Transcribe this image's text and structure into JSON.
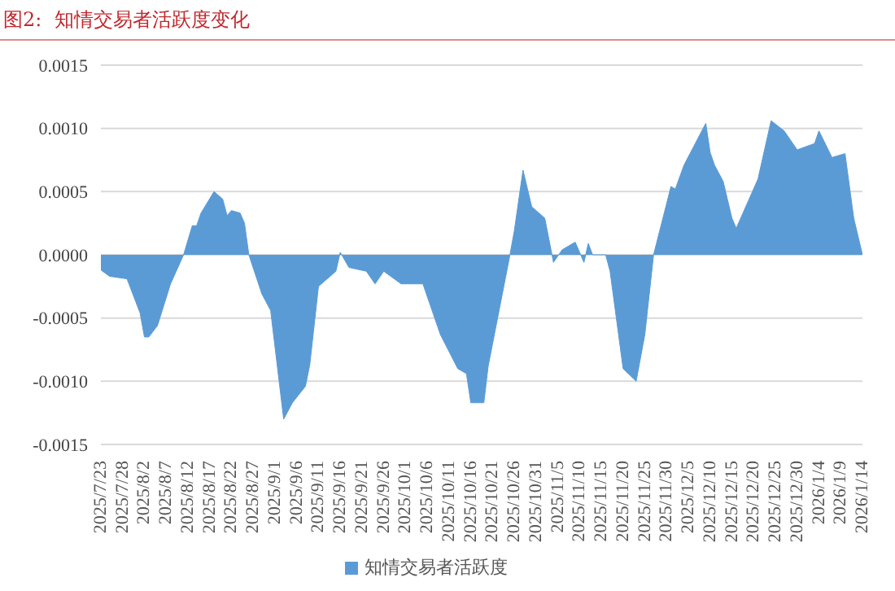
{
  "chart_data": {
    "type": "area",
    "title": "图2:  知情交易者活跃度变化",
    "x": [
      "2025-07-23",
      "2025-07-25",
      "2025-07-29",
      "2025-08-01",
      "2025-08-02",
      "2025-08-03",
      "2025-08-05",
      "2025-08-08",
      "2025-08-11",
      "2025-08-13",
      "2025-08-14",
      "2025-08-15",
      "2025-08-18",
      "2025-08-20",
      "2025-08-21",
      "2025-08-22",
      "2025-08-24",
      "2025-08-25",
      "2025-08-26",
      "2025-08-29",
      "2025-08-31",
      "2025-09-03",
      "2025-09-05",
      "2025-09-08",
      "2025-09-09",
      "2025-09-11",
      "2025-09-15",
      "2025-09-16",
      "2025-09-18",
      "2025-09-22",
      "2025-09-24",
      "2025-09-26",
      "2025-09-30",
      "2025-10-05",
      "2025-10-09",
      "2025-10-13",
      "2025-10-15",
      "2025-10-16",
      "2025-10-19",
      "2025-10-20",
      "2025-10-25",
      "2025-10-26",
      "2025-10-28",
      "2025-10-30",
      "2025-11-02",
      "2025-11-04",
      "2025-11-06",
      "2025-11-09",
      "2025-11-11",
      "2025-11-12",
      "2025-11-13",
      "2025-11-16",
      "2025-11-17",
      "2025-11-20",
      "2025-11-23",
      "2025-11-25",
      "2025-11-27",
      "2025-12-01",
      "2025-12-02",
      "2025-12-04",
      "2025-12-09",
      "2025-12-10",
      "2025-12-11",
      "2025-12-13",
      "2025-12-15",
      "2025-12-16",
      "2025-12-21",
      "2025-12-24",
      "2025-12-27",
      "2025-12-30",
      "2026-01-03",
      "2026-01-04",
      "2026-01-07",
      "2026-01-10",
      "2026-01-12",
      "2026-01-14"
    ],
    "series": [
      {
        "name": "知情交易者活跃度",
        "color": "#5b9bd5",
        "values": [
          -0.00012,
          -0.00017,
          -0.00019,
          -0.00046,
          -0.00065,
          -0.00065,
          -0.00056,
          -0.00023,
          0,
          0.00023,
          0.00023,
          0.00033,
          0.0005,
          0.00044,
          0.00031,
          0.00035,
          0.00033,
          0.00025,
          0,
          -0.00031,
          -0.00044,
          -0.0013,
          -0.00117,
          -0.00104,
          -0.00087,
          -0.00025,
          -0.00013,
          2e-05,
          -0.0001,
          -0.00013,
          -0.00023,
          -0.00013,
          -0.00023,
          -0.00023,
          -0.00063,
          -0.0009,
          -0.00094,
          -0.00117,
          -0.00117,
          -0.00088,
          0,
          0.00019,
          0.00067,
          0.00038,
          0.00029,
          -6e-05,
          4e-05,
          0.0001,
          -6e-05,
          9e-05,
          0,
          0,
          -0.00013,
          -0.0009,
          -0.001,
          -0.00063,
          0,
          0.00054,
          0.00052,
          0.00071,
          0.00104,
          0.00081,
          0.00071,
          0.00058,
          0.00029,
          0.00021,
          0.0006,
          0.00106,
          0.00098,
          0.00083,
          0.00088,
          0.00098,
          0.00077,
          0.0008,
          0.00029,
          0
        ]
      }
    ],
    "xlim": [
      "2025-07-23",
      "2026-01-14"
    ],
    "xticks": [
      {
        "value": "2025-07-23",
        "label": "2025/7/23"
      },
      {
        "value": "2025-07-28",
        "label": "2025/7/28"
      },
      {
        "value": "2025-08-02",
        "label": "2025/8/2"
      },
      {
        "value": "2025-08-07",
        "label": "2025/8/7"
      },
      {
        "value": "2025-08-12",
        "label": "2025/8/12"
      },
      {
        "value": "2025-08-17",
        "label": "2025/8/17"
      },
      {
        "value": "2025-08-22",
        "label": "2025/8/22"
      },
      {
        "value": "2025-08-27",
        "label": "2025/8/27"
      },
      {
        "value": "2025-09-01",
        "label": "2025/9/1"
      },
      {
        "value": "2025-09-06",
        "label": "2025/9/6"
      },
      {
        "value": "2025-09-11",
        "label": "2025/9/11"
      },
      {
        "value": "2025-09-16",
        "label": "2025/9/16"
      },
      {
        "value": "2025-09-21",
        "label": "2025/9/21"
      },
      {
        "value": "2025-09-26",
        "label": "2025/9/26"
      },
      {
        "value": "2025-10-01",
        "label": "2025/10/1"
      },
      {
        "value": "2025-10-06",
        "label": "2025/10/6"
      },
      {
        "value": "2025-10-11",
        "label": "2025/10/11"
      },
      {
        "value": "2025-10-16",
        "label": "2025/10/16"
      },
      {
        "value": "2025-10-21",
        "label": "2025/10/21"
      },
      {
        "value": "2025-10-26",
        "label": "2025/10/26"
      },
      {
        "value": "2025-10-31",
        "label": "2025/10/31"
      },
      {
        "value": "2025-11-05",
        "label": "2025/11/5"
      },
      {
        "value": "2025-11-10",
        "label": "2025/11/10"
      },
      {
        "value": "2025-11-15",
        "label": "2025/11/15"
      },
      {
        "value": "2025-11-20",
        "label": "2025/11/20"
      },
      {
        "value": "2025-11-25",
        "label": "2025/11/25"
      },
      {
        "value": "2025-11-30",
        "label": "2025/11/30"
      },
      {
        "value": "2025-12-05",
        "label": "2025/12/5"
      },
      {
        "value": "2025-12-10",
        "label": "2025/12/10"
      },
      {
        "value": "2025-12-15",
        "label": "2025/12/15"
      },
      {
        "value": "2025-12-20",
        "label": "2025/12/20"
      },
      {
        "value": "2025-12-25",
        "label": "2025/12/25"
      },
      {
        "value": "2025-12-30",
        "label": "2025/12/30"
      },
      {
        "value": "2026-01-04",
        "label": "2026/1/4"
      },
      {
        "value": "2026-01-09",
        "label": "2026/1/9"
      },
      {
        "value": "2026-01-14",
        "label": "2026/1/14"
      }
    ],
    "ylim": [
      -0.0015,
      0.0015
    ],
    "yticks": [
      {
        "value": -0.0015,
        "label": "-0.0015"
      },
      {
        "value": -0.001,
        "label": "-0.0010"
      },
      {
        "value": -0.0005,
        "label": "-0.0005"
      },
      {
        "value": 0,
        "label": "0.0000"
      },
      {
        "value": 0.0005,
        "label": "0.0005"
      },
      {
        "value": 0.001,
        "label": "0.0010"
      },
      {
        "value": 0.0015,
        "label": "0.0015"
      }
    ],
    "grid": "y",
    "legend": "bottom"
  }
}
